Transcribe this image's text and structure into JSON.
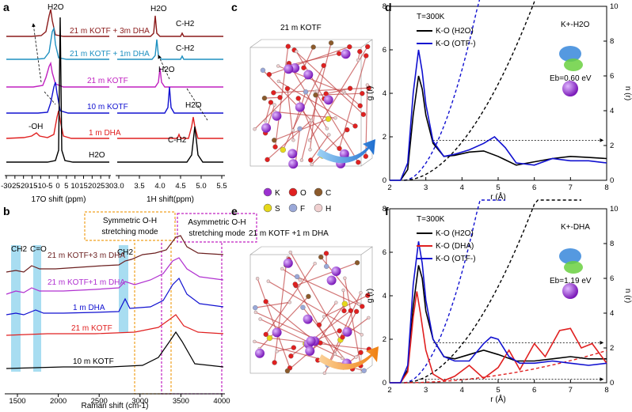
{
  "panel_a": {
    "letter": "a",
    "left_xlabel": "17O shift (ppm)",
    "left_xticks": [
      "-30",
      "-25",
      "-20",
      "-15",
      "-10",
      "-5",
      "0",
      "5",
      "10",
      "15",
      "20",
      "25",
      "30"
    ],
    "right_xlabel": "1H shift(ppm)",
    "right_xticks": [
      "3.0",
      "3.5",
      "4.0",
      "4.5",
      "5.0",
      "5.5"
    ],
    "traces": [
      {
        "label": "21 m KOTF + 3m DHA",
        "color": "#8b1a1a"
      },
      {
        "label": "21 m KOTF + 1m DHA",
        "color": "#1e90c0"
      },
      {
        "label": "21 m KOTF",
        "color": "#c020c0"
      },
      {
        "label": "10 m KOTF",
        "color": "#1010d0"
      },
      {
        "label": "1 m DHA",
        "color": "#e02020"
      },
      {
        "label": "H2O",
        "color": "#000000"
      }
    ],
    "annotations": {
      "h2o_left": "H2O",
      "oh": "-OH",
      "h2o_right_top": "H2O",
      "ch2_top": "C-H2",
      "ch2_mid": "C-H2",
      "h2o_r3": "H2O",
      "h2o_r2": "H2O",
      "ch2_low": "C-H2",
      "h2o_bottom": "H2O"
    }
  },
  "panel_b": {
    "letter": "b",
    "xlabel": "Raman shift (cm-1)",
    "xticks": [
      "1500",
      "2000",
      "2500",
      "3000",
      "3500",
      "4000"
    ],
    "box1": [
      "Symmetric O-H",
      "stretching mode"
    ],
    "box2": [
      "Asymmetric O-H",
      "stretching mode"
    ],
    "band_labels": [
      "CH2",
      "C=O",
      "CH2"
    ],
    "traces": [
      {
        "label": "21 m KOTF+3 m DHA",
        "color": "#6b1f1f"
      },
      {
        "label": "21 m KOTF+1 m DHA",
        "color": "#b030d0"
      },
      {
        "label": "1 m DHA",
        "color": "#1010d0"
      },
      {
        "label": "21 m KOTF",
        "color": "#e02020"
      },
      {
        "label": "10 m KOTF",
        "color": "#000000"
      }
    ]
  },
  "panel_c": {
    "letter": "c",
    "title": "21 m KOTF"
  },
  "panel_e": {
    "letter": "e",
    "title": "21 m KOTF +1 m DHA"
  },
  "atom_legend": [
    {
      "symbol": "K",
      "color": "#9b30d0"
    },
    {
      "symbol": "O",
      "color": "#e02020"
    },
    {
      "symbol": "C",
      "color": "#8b5a2b"
    },
    {
      "symbol": "S",
      "color": "#e6d81a"
    },
    {
      "symbol": "F",
      "color": "#9aa8d8"
    },
    {
      "symbol": "H",
      "color": "#f0d0d0"
    }
  ],
  "panel_d": {
    "letter": "d",
    "temp": "T=300K",
    "complex": "K+-H2O",
    "energy": "Eb=0.60 eV",
    "ylabel_left": "g (r)",
    "ylabel_right": "n (r)",
    "xlabel": "r (Å)",
    "legend": [
      {
        "label": "K-O (H2O)",
        "color": "#000000"
      },
      {
        "label": "K-O (OTF-)",
        "color": "#1010d0"
      }
    ]
  },
  "panel_f": {
    "letter": "f",
    "temp": "T=300K",
    "complex": "K+-DHA",
    "energy": "Eb=1.19 eV",
    "ylabel_left": "g (r)",
    "ylabel_right": "n (r)",
    "xlabel": "r (Å)",
    "legend": [
      {
        "label": "K-O (H2O)",
        "color": "#000000"
      },
      {
        "label": "K-O (DHA)",
        "color": "#e02020"
      },
      {
        "label": "K-O (OTF-)",
        "color": "#1010d0"
      }
    ]
  },
  "rdf_axes": {
    "xticks": [
      "2",
      "3",
      "4",
      "5",
      "6",
      "7",
      "8"
    ],
    "yticks_left": [
      "0",
      "2",
      "4",
      "6",
      "8"
    ],
    "yticks_right": [
      "0",
      "2",
      "4",
      "6",
      "8",
      "10"
    ]
  },
  "chart_data": [
    {
      "type": "line",
      "title": "",
      "xlabel": "r (Å)",
      "ylabel": "g (r)",
      "ylabel_right": "n (r)",
      "xlim": [
        2,
        8
      ],
      "ylim": [
        0,
        8
      ],
      "ylim_right": [
        0,
        10
      ],
      "series": [
        {
          "name": "K-O (H2O)",
          "x": [
            2.0,
            2.3,
            2.5,
            2.65,
            2.8,
            2.9,
            3.0,
            3.2,
            3.5,
            3.8,
            4.2,
            4.6,
            5.0,
            5.5,
            6.0,
            6.5,
            7.0,
            7.5,
            8.0
          ],
          "y": [
            0,
            0,
            0.5,
            3.0,
            4.8,
            4.2,
            3.0,
            1.7,
            1.1,
            1.15,
            1.3,
            1.35,
            1.1,
            0.7,
            0.85,
            1.0,
            1.1,
            1.05,
            1.0
          ]
        },
        {
          "name": "K-O (OTF-)",
          "x": [
            2.0,
            2.3,
            2.5,
            2.65,
            2.8,
            2.9,
            3.0,
            3.2,
            3.5,
            3.8,
            4.2,
            4.6,
            4.9,
            5.2,
            5.5,
            6.0,
            6.5,
            7.0,
            7.5,
            8.0
          ],
          "y": [
            0,
            0,
            0.8,
            4.0,
            6.0,
            5.0,
            3.5,
            1.8,
            1.1,
            1.2,
            1.4,
            1.7,
            2.0,
            1.5,
            0.8,
            0.7,
            1.0,
            0.9,
            0.9,
            0.8
          ]
        }
      ]
    },
    {
      "type": "line",
      "title": "",
      "xlabel": "r (Å)",
      "ylabel": "g (r)",
      "ylabel_right": "n (r)",
      "xlim": [
        2,
        8
      ],
      "ylim": [
        0,
        8
      ],
      "ylim_right": [
        0,
        10
      ],
      "series": [
        {
          "name": "K-O (H2O)",
          "x": [
            2.0,
            2.3,
            2.5,
            2.65,
            2.8,
            2.9,
            3.0,
            3.2,
            3.5,
            3.8,
            4.2,
            4.6,
            5.0,
            5.5,
            6.0,
            6.5,
            7.0,
            7.5,
            8.0
          ],
          "y": [
            0,
            0,
            0.6,
            3.5,
            5.4,
            4.8,
            3.3,
            2.0,
            1.2,
            1.1,
            1.3,
            1.5,
            1.3,
            1.0,
            1.0,
            1.1,
            1.2,
            1.1,
            1.1
          ]
        },
        {
          "name": "K-O (DHA)",
          "x": [
            2.0,
            2.3,
            2.5,
            2.65,
            2.75,
            2.85,
            3.0,
            3.2,
            3.5,
            3.8,
            4.2,
            4.6,
            5.0,
            5.3,
            5.6,
            6.0,
            6.3,
            6.7,
            7.0,
            7.3,
            7.6,
            8.0
          ],
          "y": [
            0,
            0,
            0.5,
            3.0,
            4.2,
            3.2,
            1.5,
            0.4,
            0.1,
            0.3,
            0.8,
            0.2,
            0.7,
            1.5,
            0.6,
            1.8,
            1.2,
            2.4,
            2.5,
            1.6,
            1.8,
            0.9
          ]
        },
        {
          "name": "K-O (OTF-)",
          "x": [
            2.0,
            2.3,
            2.5,
            2.65,
            2.8,
            2.9,
            3.0,
            3.2,
            3.5,
            3.8,
            4.2,
            4.6,
            4.8,
            5.0,
            5.3,
            5.6,
            6.0,
            6.5,
            7.0,
            7.5,
            8.0
          ],
          "y": [
            0,
            0,
            0.8,
            4.5,
            6.5,
            5.5,
            3.8,
            2.0,
            1.2,
            1.0,
            1.0,
            1.8,
            2.1,
            2.0,
            1.2,
            0.9,
            0.9,
            1.0,
            0.9,
            0.8,
            0.9
          ]
        }
      ]
    }
  ]
}
